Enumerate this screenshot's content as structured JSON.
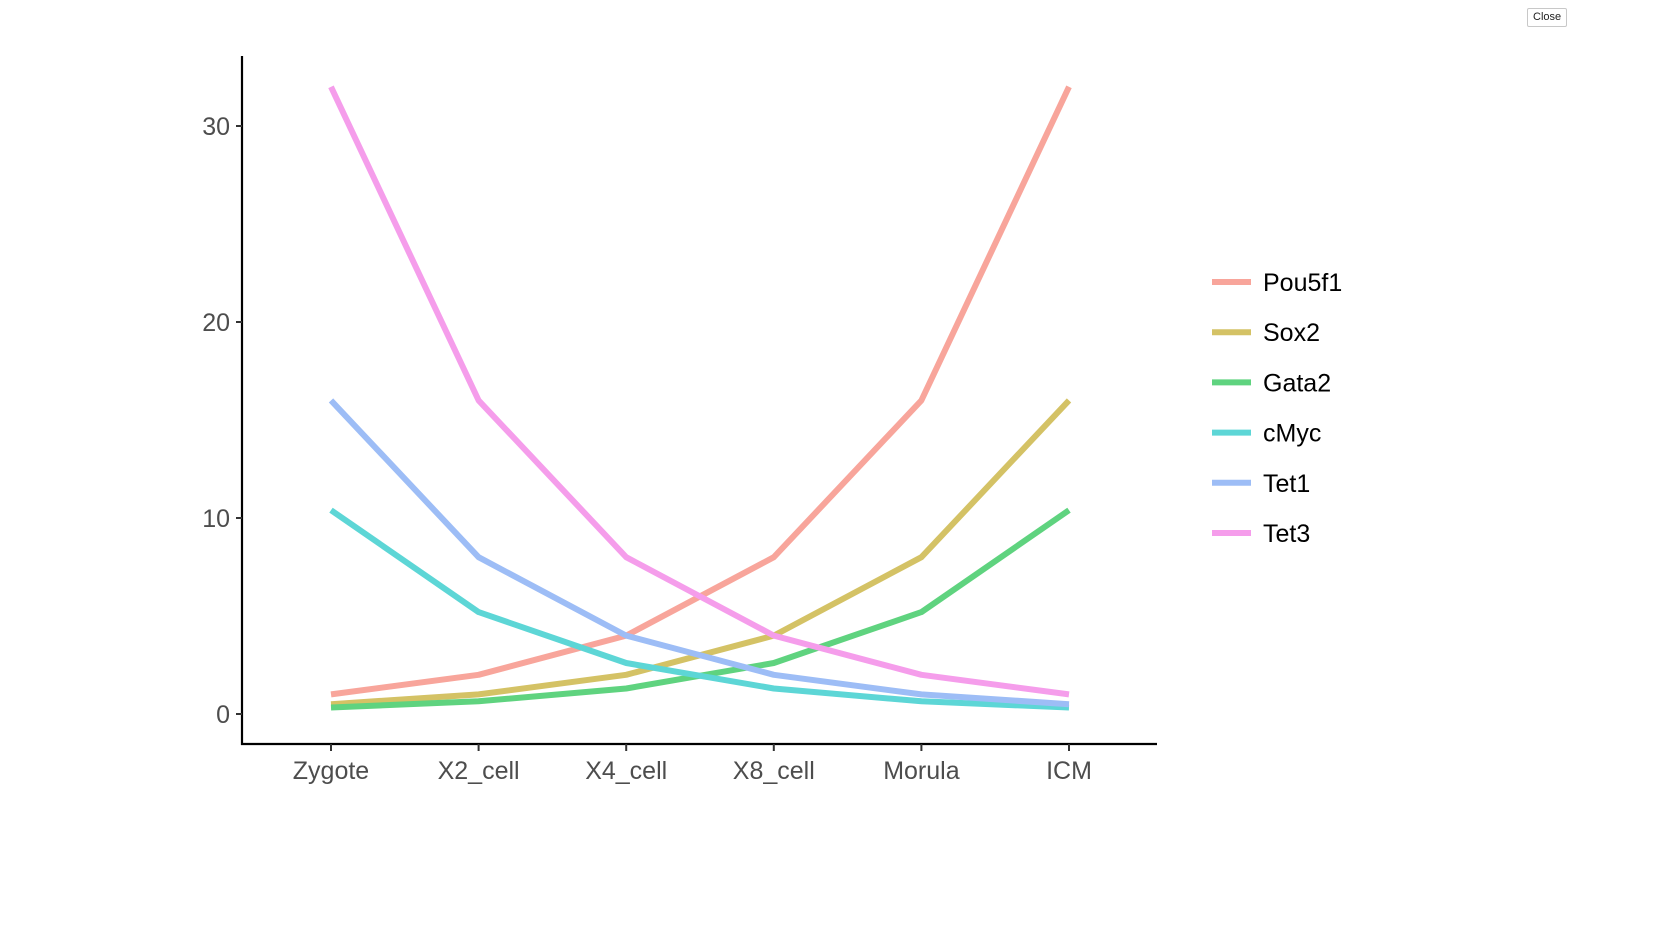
{
  "ui": {
    "close_label": "Close"
  },
  "chart_data": {
    "type": "line",
    "title": "",
    "xlabel": "",
    "ylabel": "",
    "categories": [
      "Zygote",
      "X2_cell",
      "X4_cell",
      "X8_cell",
      "Morula",
      "ICM"
    ],
    "yticks": [
      0,
      10,
      20,
      30
    ],
    "ylim": [
      -1.6,
      33.6
    ],
    "grid": false,
    "legend_position": "right",
    "series": [
      {
        "name": "Pou5f1",
        "color": "#F8A59B",
        "values": [
          1,
          2,
          4,
          8,
          16,
          32
        ]
      },
      {
        "name": "Sox2",
        "color": "#D4C265",
        "values": [
          0.5,
          1,
          2,
          4,
          8,
          16
        ]
      },
      {
        "name": "Gata2",
        "color": "#5FD37F",
        "values": [
          0.33,
          0.65,
          1.3,
          2.6,
          5.2,
          10.4
        ]
      },
      {
        "name": "cMyc",
        "color": "#5DD6D6",
        "values": [
          10.4,
          5.2,
          2.6,
          1.3,
          0.65,
          0.33
        ]
      },
      {
        "name": "Tet1",
        "color": "#9DBDF6",
        "values": [
          16,
          8,
          4,
          2,
          1,
          0.5
        ]
      },
      {
        "name": "Tet3",
        "color": "#F59DEB",
        "values": [
          32,
          16,
          8,
          4,
          2,
          1
        ]
      }
    ]
  }
}
